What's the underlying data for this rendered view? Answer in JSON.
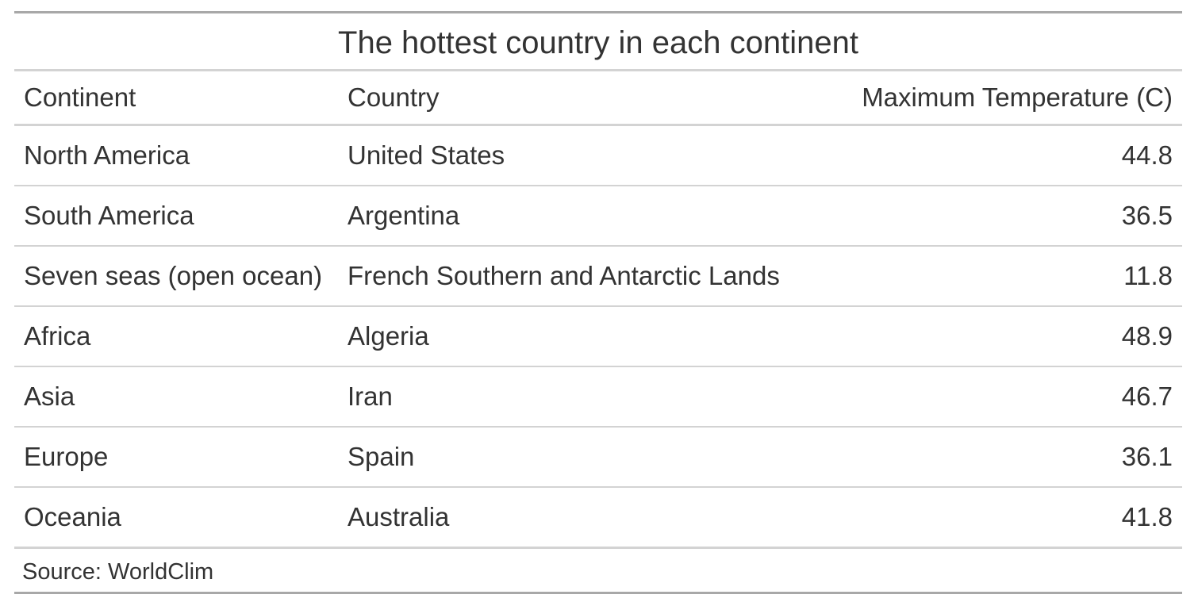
{
  "table": {
    "title": "The hottest country in each continent",
    "headers": {
      "continent": "Continent",
      "country": "Country",
      "max_temp": "Maximum Temperature (C)"
    },
    "rows": [
      {
        "continent": "North America",
        "country": "United States",
        "max_temp": "44.8"
      },
      {
        "continent": "South America",
        "country": "Argentina",
        "max_temp": "36.5"
      },
      {
        "continent": "Seven seas (open ocean)",
        "country": "French Southern and Antarctic Lands",
        "max_temp": "11.8"
      },
      {
        "continent": "Africa",
        "country": "Algeria",
        "max_temp": "48.9"
      },
      {
        "continent": "Asia",
        "country": "Iran",
        "max_temp": "46.7"
      },
      {
        "continent": "Europe",
        "country": "Spain",
        "max_temp": "36.1"
      },
      {
        "continent": "Oceania",
        "country": "Australia",
        "max_temp": "41.8"
      }
    ],
    "source_note": "Source: WorldClim"
  },
  "colors": {
    "text": "#333333",
    "outer_rule": "#a8a8a8",
    "inner_rule": "#d3d3d3"
  }
}
